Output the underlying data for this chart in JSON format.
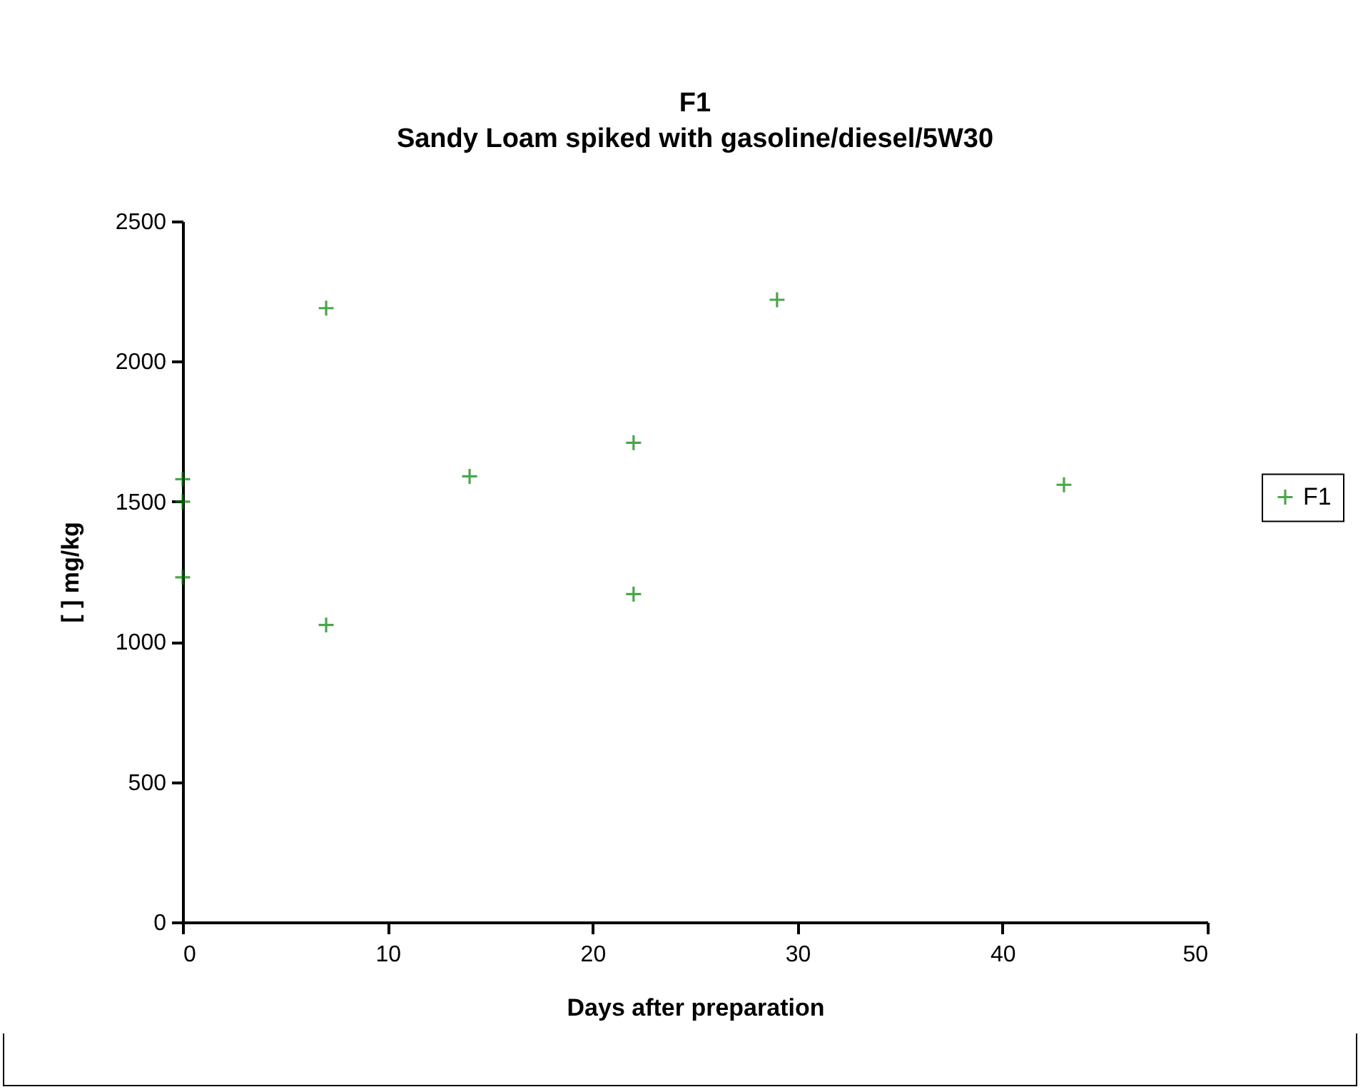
{
  "chart_data": {
    "type": "scatter",
    "title": "F1",
    "subtitle": "Sandy Loam spiked with gasoline/diesel/5W30",
    "xlabel": "Days after preparation",
    "ylabel": "[ ] mg/kg",
    "series": [
      {
        "name": "F1",
        "color": "#008000",
        "x": [
          0,
          0,
          0,
          7,
          7,
          14,
          22,
          22,
          29,
          43
        ],
        "values": [
          1580,
          1500,
          1230,
          2190,
          1060,
          1590,
          1710,
          1170,
          2220,
          1560
        ]
      }
    ],
    "xlim": [
      0,
      50
    ],
    "xticks": [
      0,
      10,
      20,
      30,
      40,
      50
    ],
    "ylim": [
      0,
      2500
    ],
    "yticks": [
      0,
      500,
      1000,
      1500,
      2000,
      2500
    ],
    "grid": false,
    "legend": "right",
    "marker": "cross"
  }
}
